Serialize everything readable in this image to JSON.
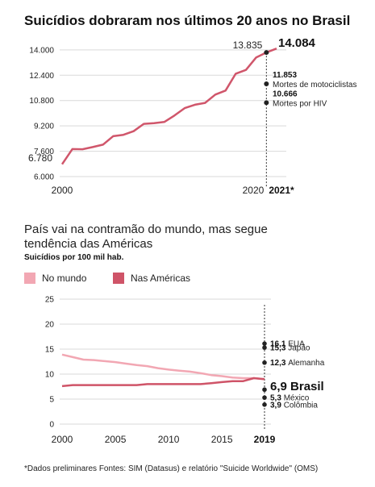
{
  "colors": {
    "brazil_line": "#d0566b",
    "world_line": "#f2a7b3",
    "americas_line": "#cf5468",
    "grid": "#d9d9d9",
    "dots": "#222222"
  },
  "footnote": "*Dados preliminares Fontes: SIM (Datasus) e relatório \"Suicide Worldwide\" (OMS)",
  "chart_data": [
    {
      "type": "line",
      "title": "Suicídios dobraram nos últimos 20 anos no Brasil",
      "ylim": [
        6000,
        14500
      ],
      "yticks": [
        "6.000",
        "7.600",
        "9.200",
        "10.800",
        "12.400",
        "14.000"
      ],
      "ytick_values": [
        6000,
        7600,
        9200,
        10800,
        12400,
        14000
      ],
      "xlim": [
        2000,
        2021
      ],
      "xtick_labels": [
        "2000",
        "2020",
        "2021*"
      ],
      "series": [
        {
          "x": [
            2000,
            2001,
            2002,
            2003,
            2004,
            2005,
            2006,
            2007,
            2008,
            2009,
            2010,
            2011,
            2012,
            2013,
            2014,
            2015,
            2016,
            2017,
            2018,
            2019,
            2020,
            2021
          ],
          "values": [
            6780,
            7738,
            7726,
            7861,
            8017,
            8550,
            8639,
            8868,
            9328,
            9374,
            9448,
            9852,
            10321,
            10533,
            10653,
            11178,
            11433,
            12495,
            12733,
            13523,
            13835,
            14084
          ]
        }
      ],
      "labels": {
        "first": "6.780",
        "y2020": "13.835",
        "y2021": "14.084"
      },
      "annotations": [
        {
          "value": "11.853",
          "text": "Mortes de motociclistas",
          "y": 11853
        },
        {
          "value": "10.666",
          "text": "Mortes por HIV",
          "y": 10666
        }
      ],
      "grid": true
    },
    {
      "type": "line",
      "title": "País vai na contramão do mundo, mas segue tendência das Américas",
      "subtitle": "Suicídios por 100 mil hab.",
      "ylim": [
        0,
        25
      ],
      "yticks": [
        "0",
        "5",
        "10",
        "15",
        "20",
        "25"
      ],
      "ytick_values": [
        0,
        5,
        10,
        15,
        20,
        25
      ],
      "xlim": [
        2000,
        2019
      ],
      "xtick_labels": [
        "2000",
        "2005",
        "2010",
        "2015",
        "2019"
      ],
      "xtick_values": [
        2000,
        2005,
        2010,
        2015,
        2019
      ],
      "legend": [
        "No mundo",
        "Nas Américas"
      ],
      "series": [
        {
          "name": "No mundo",
          "x": [
            2000,
            2001,
            2002,
            2003,
            2004,
            2005,
            2006,
            2007,
            2008,
            2009,
            2010,
            2011,
            2012,
            2013,
            2014,
            2015,
            2016,
            2017,
            2018,
            2019
          ],
          "values": [
            13.9,
            13.4,
            12.9,
            12.8,
            12.6,
            12.4,
            12.1,
            11.8,
            11.6,
            11.2,
            10.9,
            10.7,
            10.5,
            10.2,
            9.8,
            9.6,
            9.3,
            9.2,
            9.2,
            9.0
          ]
        },
        {
          "name": "Nas Américas",
          "x": [
            2000,
            2001,
            2002,
            2003,
            2004,
            2005,
            2006,
            2007,
            2008,
            2009,
            2010,
            2011,
            2012,
            2013,
            2014,
            2015,
            2016,
            2017,
            2018,
            2019
          ],
          "values": [
            7.6,
            7.8,
            7.8,
            7.8,
            7.8,
            7.8,
            7.8,
            7.8,
            8.0,
            8.0,
            8.0,
            8.0,
            8.0,
            8.0,
            8.2,
            8.4,
            8.6,
            8.6,
            9.2,
            9.0
          ]
        }
      ],
      "countries_2019": [
        {
          "value": "16,1",
          "name": "EUA",
          "v": 16.1
        },
        {
          "value": "15,3",
          "name": "Japão",
          "v": 15.3
        },
        {
          "value": "12,3",
          "name": "Alemanha",
          "v": 12.3
        },
        {
          "value": "6,9",
          "name": "Brasil",
          "v": 6.9,
          "highlight": true
        },
        {
          "value": "5,3",
          "name": "México",
          "v": 5.3
        },
        {
          "value": "3,9",
          "name": "Colômbia",
          "v": 3.9
        }
      ],
      "grid": true
    }
  ]
}
